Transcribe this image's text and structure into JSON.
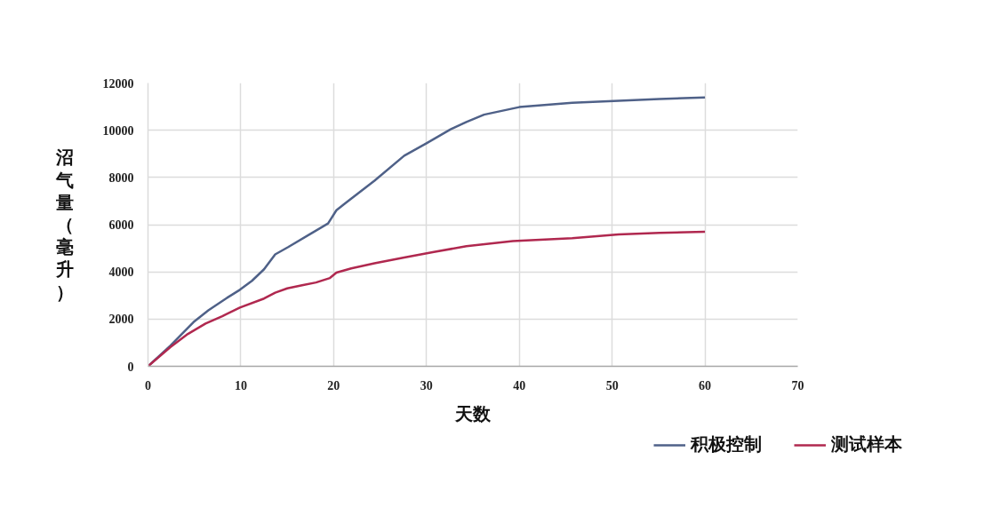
{
  "chart_data": {
    "type": "line",
    "xlabel": "天数",
    "ylabel": "沼气量（毫升）",
    "xlim": [
      0,
      70
    ],
    "xticks": [
      0,
      10,
      20,
      30,
      40,
      50,
      60,
      70
    ],
    "ylim": [
      0,
      12000
    ],
    "yticks": [
      0,
      2000,
      4000,
      6000,
      8000,
      10000,
      12000
    ],
    "grid": true,
    "legend": "bottom right",
    "line_style": "solid",
    "marker": "none",
    "series": [
      {
        "name": "积极控制",
        "color": "#4f6188",
        "x": [
          0,
          2.4,
          4.9,
          6.5,
          8.4,
          9.9,
          11.2,
          12.5,
          13.7,
          15.1,
          17.5,
          19.4,
          20.3,
          21.3,
          24.4,
          27.6,
          30,
          32.6,
          34.3,
          36.2,
          40,
          45.7,
          50.7,
          55.1,
          60
        ],
        "values": [
          0,
          870,
          1870,
          2370,
          2870,
          3240,
          3620,
          4110,
          4740,
          5050,
          5610,
          6050,
          6610,
          6920,
          7860,
          8920,
          9450,
          10040,
          10350,
          10660,
          10980,
          11160,
          11250,
          11320,
          11390
        ]
      },
      {
        "name": "测试样本",
        "color": "#b0284f",
        "x": [
          0,
          2.4,
          4.3,
          6.2,
          8,
          9.9,
          12.5,
          13.7,
          15,
          16.6,
          18.1,
          19.6,
          20.3,
          21.9,
          24.4,
          27.6,
          30.8,
          34.3,
          39.3,
          45.7,
          50.7,
          55.1,
          60
        ],
        "values": [
          0,
          810,
          1370,
          1810,
          2120,
          2490,
          2870,
          3120,
          3300,
          3430,
          3550,
          3740,
          3970,
          4150,
          4360,
          4610,
          4840,
          5090,
          5300,
          5430,
          5590,
          5650,
          5700
        ]
      }
    ]
  }
}
